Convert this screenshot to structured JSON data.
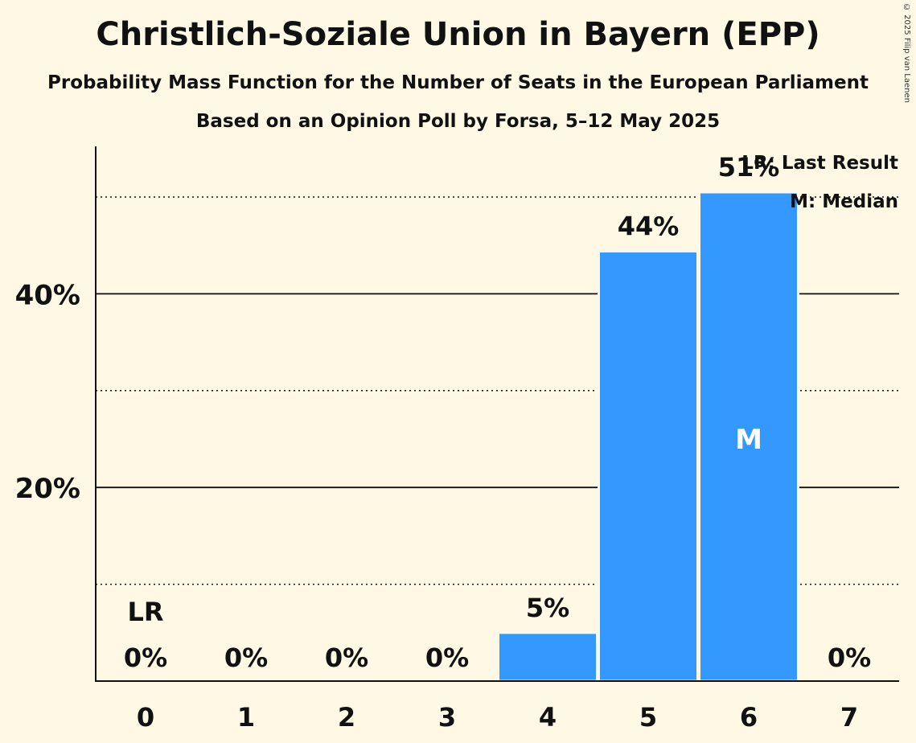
{
  "title": "Christlich-Soziale Union in Bayern (EPP)",
  "subtitle": "Probability Mass Function for the Number of Seats in the European Parliament",
  "subtitle2": "Based on an Opinion Poll by Forsa, 5–12 May 2025",
  "copyright": "© 2025 Filip van Laenen",
  "legend": {
    "last_result": "LR: Last Result",
    "median": "M: Median"
  },
  "colors": {
    "bar": "#3399ff",
    "background": "#fef8e4"
  },
  "chart_data": {
    "type": "bar",
    "title": "Christlich-Soziale Union in Bayern (EPP)",
    "xlabel": "",
    "ylabel": "",
    "categories": [
      "0",
      "1",
      "2",
      "3",
      "4",
      "5",
      "6",
      "7"
    ],
    "values": [
      0,
      0,
      0,
      0,
      5,
      44.4,
      50.5,
      0
    ],
    "data_labels": [
      "0%",
      "0%",
      "0%",
      "0%",
      "5%",
      "44%",
      "51%",
      "0%"
    ],
    "y_ticks": [
      20,
      40
    ],
    "y_tick_labels": [
      "20%",
      "40%"
    ],
    "minor_gridlines": [
      10,
      30,
      50
    ],
    "ylim": [
      0,
      55
    ],
    "last_result_seat": "0",
    "last_result_label": "LR",
    "median_seat": "6",
    "median_label": "M",
    "legend_position": "top-right"
  }
}
